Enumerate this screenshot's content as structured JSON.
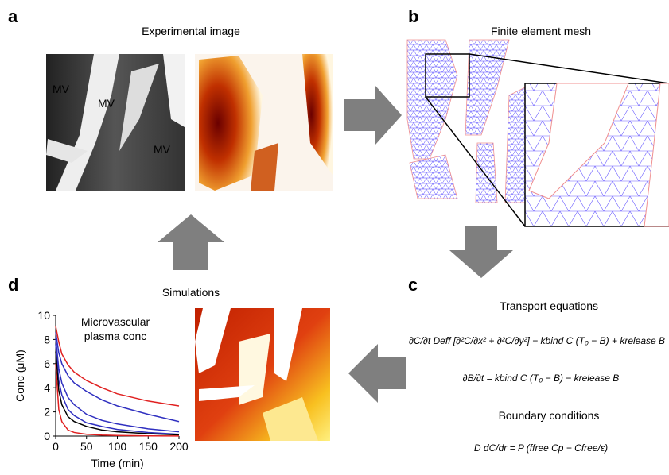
{
  "panels": {
    "a": {
      "letter": "a",
      "title": "Experimental image",
      "labels": [
        "MV",
        "MV",
        "MV"
      ]
    },
    "b": {
      "letter": "b",
      "title": "Finite element mesh"
    },
    "c": {
      "letter": "c",
      "title": "Transport equations",
      "equations": [
        "∂C/∂t   Deff [∂²C/∂x² + ∂²C/∂y²] − kbind C (T₀ − B) + krelease B",
        "∂B/∂t = kbind C (T₀ − B) − krelease B"
      ],
      "subtitle": "Boundary conditions",
      "boundary_equation": "D dC/dr = P (ffree Cp − Cfree/ε)"
    },
    "d": {
      "letter": "d",
      "title": "Simulations"
    }
  },
  "chart_data": {
    "type": "line",
    "annotation": [
      "Microvascular",
      "plasma conc"
    ],
    "x_label": "Time (min)",
    "y_label": "Conc (μM)",
    "x": [
      0,
      5,
      10,
      20,
      30,
      50,
      75,
      100,
      150,
      200
    ],
    "xlim": [
      0,
      200
    ],
    "xticks": [
      0,
      50,
      100,
      150,
      200
    ],
    "ylim": [
      0,
      10
    ],
    "yticks": [
      0,
      2,
      4,
      6,
      8,
      10
    ],
    "series": [
      {
        "color": "#e02020",
        "values": [
          9.1,
          7.8,
          6.8,
          5.9,
          5.3,
          4.6,
          4.0,
          3.5,
          2.9,
          2.5
        ]
      },
      {
        "color": "#3030c0",
        "values": [
          8.6,
          6.9,
          6.0,
          5.0,
          4.4,
          3.7,
          3.0,
          2.5,
          1.8,
          1.2
        ]
      },
      {
        "color": "#3030c0",
        "values": [
          8.1,
          5.6,
          4.4,
          3.2,
          2.6,
          1.8,
          1.3,
          1.0,
          0.6,
          0.35
        ]
      },
      {
        "color": "#3030c0",
        "values": [
          7.6,
          4.6,
          3.4,
          2.2,
          1.7,
          1.1,
          0.8,
          0.55,
          0.3,
          0.15
        ]
      },
      {
        "color": "#000000",
        "values": [
          7.0,
          3.8,
          2.6,
          1.6,
          1.2,
          0.8,
          0.5,
          0.35,
          0.2,
          0.1
        ]
      },
      {
        "color": "#e02020",
        "values": [
          6.0,
          2.2,
          1.2,
          0.5,
          0.3,
          0.15,
          0.08,
          0.05,
          0.02,
          0.01
        ]
      }
    ]
  }
}
